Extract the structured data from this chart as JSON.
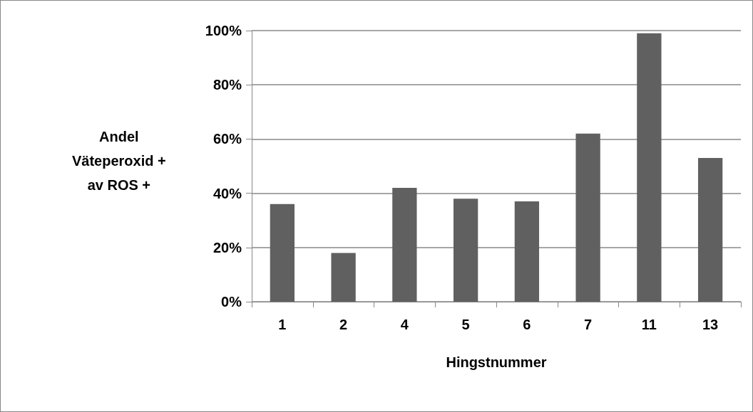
{
  "chart_data": {
    "type": "bar",
    "xlabel": "Hingstnummer",
    "ylabel": "Andel\nVäteperoxid +\nav ROS +",
    "categories": [
      "1",
      "2",
      "4",
      "5",
      "6",
      "7",
      "11",
      "13"
    ],
    "values": [
      36,
      18,
      42,
      38,
      37,
      62,
      99,
      53
    ],
    "color": "#606060",
    "ylim": [
      0,
      100
    ],
    "yticks": [
      {
        "value": 0,
        "label": "0%"
      },
      {
        "value": 20,
        "label": "20%"
      },
      {
        "value": 40,
        "label": "40%"
      },
      {
        "value": 60,
        "label": "60%"
      },
      {
        "value": 80,
        "label": "80%"
      },
      {
        "value": 100,
        "label": "100%"
      }
    ],
    "grid": "y"
  }
}
